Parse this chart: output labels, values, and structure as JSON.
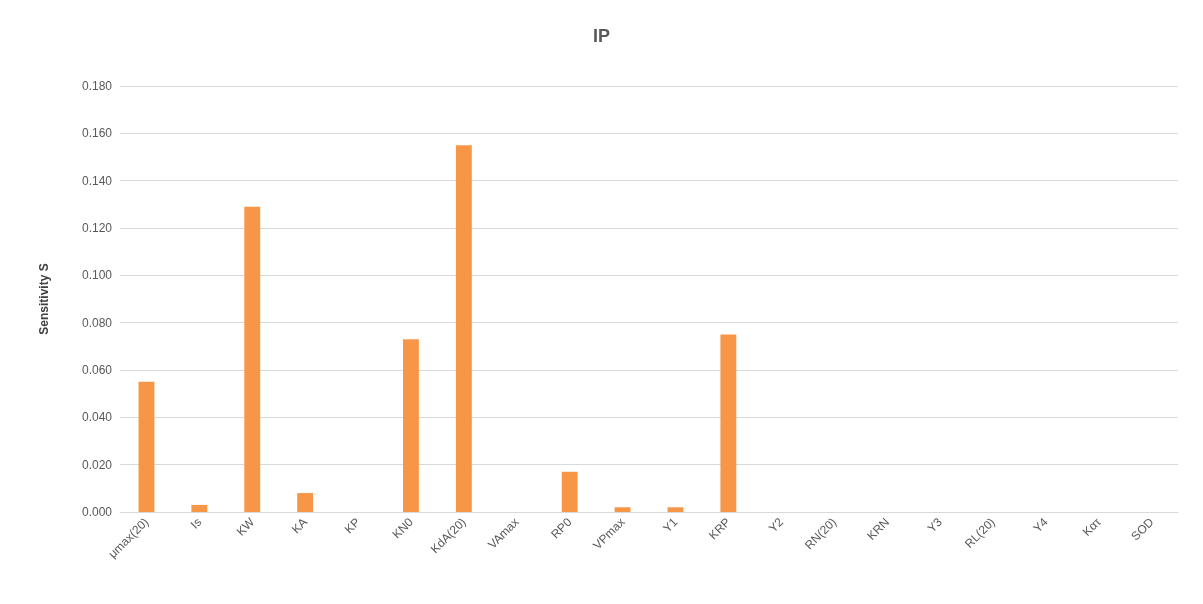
{
  "chart_data": {
    "type": "bar",
    "title": "IP",
    "ylabel": "Sensitivity S",
    "categories": [
      "μmax(20)",
      "Is",
      "KW",
      "KA",
      "KP",
      "KN0",
      "KdA(20)",
      "VAmax",
      "RP0",
      "VPmax",
      "Y1",
      "KRP",
      "Y2",
      "RN(20)",
      "KRN",
      "Y3",
      "RL(20)",
      "Y4",
      "Kατ",
      "SOD"
    ],
    "values": [
      0.055,
      0.003,
      0.129,
      0.008,
      0,
      0.073,
      0.155,
      0,
      0.017,
      0.002,
      0.002,
      0.075,
      0,
      0,
      0,
      0,
      0,
      0,
      0,
      0
    ],
    "color": "#f79646",
    "ylim": [
      0,
      0.18
    ],
    "yticks": [
      {
        "value": 0,
        "label": "0.000"
      },
      {
        "value": 0.02,
        "label": "0.020"
      },
      {
        "value": 0.04,
        "label": "0.040"
      },
      {
        "value": 0.06,
        "label": "0.060"
      },
      {
        "value": 0.08,
        "label": "0.080"
      },
      {
        "value": 0.1,
        "label": "0.100"
      },
      {
        "value": 0.12,
        "label": "0.120"
      },
      {
        "value": 0.14,
        "label": "0.140"
      },
      {
        "value": 0.16,
        "label": "0.160"
      },
      {
        "value": 0.18,
        "label": "0.180"
      }
    ],
    "grid": "y"
  }
}
